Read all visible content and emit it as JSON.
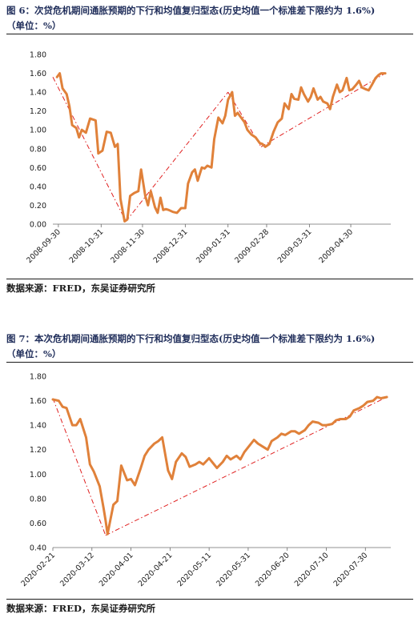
{
  "figures": [
    {
      "caption_line1": "图 6：次贷危机期间通胀预期的下行和均值复归型态(历史均值一个标准差下限约为 1.6%)",
      "caption_line2": "（单位：%）",
      "source": "数据来源：FRED，东吴证券研究所",
      "colors": {
        "line": "#e0813a",
        "trend": "#e02020"
      }
    },
    {
      "caption_line1": "图 7：本次危机期间通胀预期的下行和均值复归型态(历史均值一个标准差下限约为 1.6%)",
      "caption_line2": "（单位：%）",
      "source": "数据来源：FRED，东吴证券研究所",
      "colors": {
        "line": "#e0813a",
        "trend": "#e02020"
      }
    }
  ],
  "chart_data": [
    {
      "type": "line",
      "title": "",
      "xlabel": "",
      "ylabel": "",
      "ylim": [
        0,
        1.8
      ],
      "yticks": [
        "0.00",
        "0.20",
        "0.40",
        "0.60",
        "0.80",
        "1.00",
        "1.20",
        "1.40",
        "1.60",
        "1.80"
      ],
      "xlim": [
        "2008-09-26",
        "2009-05-29"
      ],
      "xticks": [
        "2008-09-30",
        "2008-10-31",
        "2008-11-30",
        "2008-12-31",
        "2009-01-31",
        "2009-02-28",
        "2009-03-31",
        "2009-04-30"
      ],
      "grid": false,
      "series": [
        {
          "x": [
            "2008-09-29",
            "2008-10-01",
            "2008-10-03",
            "2008-10-06",
            "2008-10-08",
            "2008-10-10",
            "2008-10-13",
            "2008-10-15",
            "2008-10-17",
            "2008-10-20",
            "2008-10-23",
            "2008-10-27",
            "2008-10-29",
            "2008-11-01",
            "2008-11-04",
            "2008-11-07",
            "2008-11-10",
            "2008-11-12",
            "2008-11-14",
            "2008-11-17",
            "2008-11-19",
            "2008-11-21",
            "2008-11-24",
            "2008-11-27",
            "2008-11-29",
            "2008-12-02",
            "2008-12-04",
            "2008-12-06",
            "2008-12-09",
            "2008-12-11",
            "2008-12-13",
            "2008-12-15",
            "2008-12-17",
            "2008-12-19",
            "2008-12-22",
            "2008-12-25",
            "2008-12-28",
            "2008-12-31",
            "2009-01-02",
            "2009-01-05",
            "2009-01-07",
            "2009-01-09",
            "2009-01-12",
            "2009-01-14",
            "2009-01-16",
            "2009-01-19",
            "2009-01-21",
            "2009-01-24",
            "2009-01-27",
            "2009-01-29",
            "2009-01-31",
            "2009-02-03",
            "2009-02-05",
            "2009-02-07",
            "2009-02-10",
            "2009-02-12",
            "2009-02-14",
            "2009-02-17",
            "2009-02-20",
            "2009-02-23",
            "2009-02-25",
            "2009-02-27",
            "2009-03-02",
            "2009-03-05",
            "2009-03-08",
            "2009-03-11",
            "2009-03-13",
            "2009-03-16",
            "2009-03-18",
            "2009-03-20",
            "2009-03-23",
            "2009-03-25",
            "2009-03-27",
            "2009-03-30",
            "2009-04-01",
            "2009-04-03",
            "2009-04-06",
            "2009-04-08",
            "2009-04-10",
            "2009-04-13",
            "2009-04-15",
            "2009-04-17",
            "2009-04-20",
            "2009-04-22",
            "2009-04-24",
            "2009-04-27",
            "2009-04-29",
            "2009-05-01",
            "2009-05-04",
            "2009-05-06",
            "2009-05-08",
            "2009-05-11",
            "2009-05-13",
            "2009-05-15",
            "2009-05-18",
            "2009-05-20",
            "2009-05-22",
            "2009-05-25"
          ],
          "y": [
            1.56,
            1.6,
            1.44,
            1.38,
            1.25,
            1.05,
            1.02,
            0.92,
            1.0,
            0.97,
            1.12,
            1.1,
            0.75,
            0.78,
            0.98,
            0.97,
            0.82,
            0.85,
            0.27,
            0.03,
            0.05,
            0.3,
            0.33,
            0.35,
            0.58,
            0.3,
            0.2,
            0.35,
            0.18,
            0.12,
            0.28,
            0.15,
            0.16,
            0.15,
            0.13,
            0.12,
            0.17,
            0.17,
            0.43,
            0.55,
            0.58,
            0.46,
            0.6,
            0.59,
            0.62,
            0.6,
            0.9,
            1.13,
            1.07,
            1.15,
            1.32,
            1.4,
            1.15,
            1.18,
            1.12,
            1.08,
            1.0,
            0.95,
            0.92,
            0.86,
            0.85,
            0.82,
            0.85,
            0.98,
            1.08,
            1.12,
            1.28,
            1.22,
            1.38,
            1.33,
            1.32,
            1.45,
            1.38,
            1.3,
            1.35,
            1.44,
            1.32,
            1.35,
            1.3,
            1.28,
            1.22,
            1.35,
            1.48,
            1.4,
            1.42,
            1.55,
            1.42,
            1.43,
            1.48,
            1.52,
            1.45,
            1.43,
            1.42,
            1.47,
            1.55,
            1.58,
            1.6,
            1.6
          ]
        }
      ],
      "trend": [
        {
          "x": [
            "2008-09-26",
            "2008-11-18"
          ],
          "y": [
            1.56,
            0.03
          ]
        },
        {
          "x": [
            "2008-11-18",
            "2009-01-31"
          ],
          "y": [
            0.03,
            1.4
          ]
        },
        {
          "x": [
            "2009-01-31",
            "2009-02-24"
          ],
          "y": [
            1.4,
            0.82
          ]
        },
        {
          "x": [
            "2009-02-24",
            "2009-05-25"
          ],
          "y": [
            0.82,
            1.6
          ]
        }
      ]
    },
    {
      "type": "line",
      "title": "",
      "xlabel": "",
      "ylabel": "",
      "ylim": [
        0.4,
        1.8
      ],
      "yticks": [
        "0.40",
        "0.60",
        "0.80",
        "1.00",
        "1.20",
        "1.40",
        "1.60",
        "1.80"
      ],
      "xlim": [
        "2020-02-21",
        "2020-08-12"
      ],
      "xticks": [
        "2020-02-21",
        "2020-03-12",
        "2020-04-01",
        "2020-04-21",
        "2020-05-11",
        "2020-05-31",
        "2020-06-20",
        "2020-07-10",
        "2020-07-30"
      ],
      "grid": false,
      "series": [
        {
          "x": [
            "2020-02-21",
            "2020-02-24",
            "2020-02-26",
            "2020-02-28",
            "2020-03-02",
            "2020-03-04",
            "2020-03-06",
            "2020-03-09",
            "2020-03-11",
            "2020-03-13",
            "2020-03-16",
            "2020-03-18",
            "2020-03-19",
            "2020-03-20",
            "2020-03-23",
            "2020-03-25",
            "2020-03-27",
            "2020-03-30",
            "2020-04-01",
            "2020-04-03",
            "2020-04-06",
            "2020-04-08",
            "2020-04-10",
            "2020-04-13",
            "2020-04-15",
            "2020-04-17",
            "2020-04-20",
            "2020-04-22",
            "2020-04-24",
            "2020-04-27",
            "2020-04-29",
            "2020-05-01",
            "2020-05-04",
            "2020-05-06",
            "2020-05-08",
            "2020-05-11",
            "2020-05-13",
            "2020-05-15",
            "2020-05-18",
            "2020-05-20",
            "2020-05-22",
            "2020-05-25",
            "2020-05-27",
            "2020-05-29",
            "2020-06-01",
            "2020-06-03",
            "2020-06-05",
            "2020-06-08",
            "2020-06-10",
            "2020-06-12",
            "2020-06-15",
            "2020-06-17",
            "2020-06-19",
            "2020-06-22",
            "2020-06-24",
            "2020-06-26",
            "2020-06-29",
            "2020-07-01",
            "2020-07-03",
            "2020-07-06",
            "2020-07-08",
            "2020-07-10",
            "2020-07-13",
            "2020-07-15",
            "2020-07-17",
            "2020-07-20",
            "2020-07-22",
            "2020-07-24",
            "2020-07-27",
            "2020-07-29",
            "2020-07-31",
            "2020-08-03",
            "2020-08-05",
            "2020-08-07",
            "2020-08-10"
          ],
          "y": [
            1.61,
            1.6,
            1.55,
            1.54,
            1.4,
            1.4,
            1.45,
            1.3,
            1.08,
            1.02,
            0.9,
            0.72,
            0.62,
            0.51,
            0.75,
            0.78,
            1.07,
            0.95,
            0.96,
            0.91,
            1.05,
            1.15,
            1.2,
            1.25,
            1.27,
            1.3,
            1.03,
            0.96,
            1.1,
            1.17,
            1.14,
            1.06,
            1.08,
            1.1,
            1.08,
            1.13,
            1.09,
            1.05,
            1.1,
            1.15,
            1.12,
            1.15,
            1.12,
            1.18,
            1.24,
            1.28,
            1.25,
            1.22,
            1.2,
            1.27,
            1.3,
            1.33,
            1.32,
            1.35,
            1.35,
            1.33,
            1.36,
            1.4,
            1.43,
            1.42,
            1.4,
            1.4,
            1.41,
            1.44,
            1.45,
            1.45,
            1.47,
            1.52,
            1.54,
            1.56,
            1.59,
            1.6,
            1.63,
            1.62,
            1.63
          ]
        }
      ],
      "trend": [
        {
          "x": [
            "2020-02-21",
            "2020-03-19"
          ],
          "y": [
            1.62,
            0.5
          ]
        },
        {
          "x": [
            "2020-03-19",
            "2020-08-10"
          ],
          "y": [
            0.5,
            1.63
          ]
        }
      ]
    }
  ]
}
